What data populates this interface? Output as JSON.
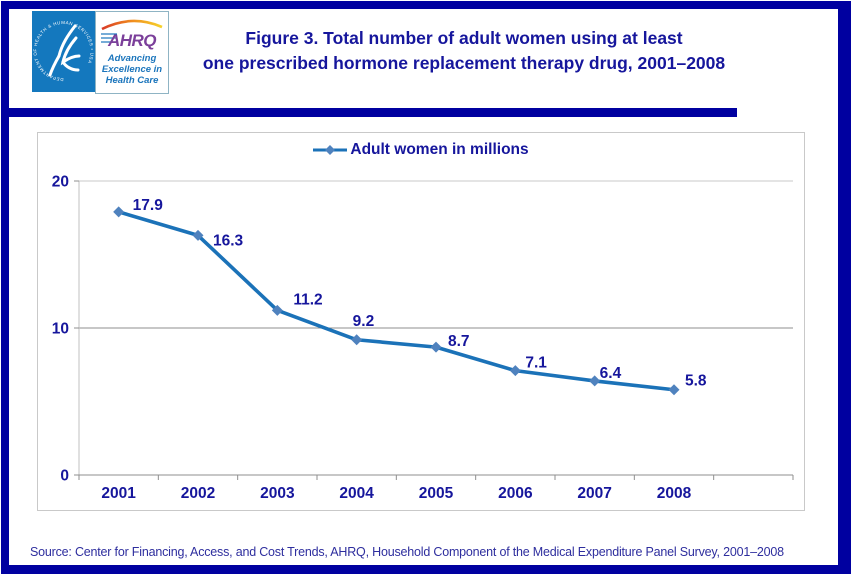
{
  "page": {
    "background": "#FFFFFF",
    "border_color": "#0000A0",
    "title_line1": "Figure 3. Total number of adult women using at least",
    "title_line2": "one prescribed hormone replacement therapy drug, 2001–2008",
    "title_color": "#16169C"
  },
  "header": {
    "hhs_seal_text": "DEPARTMENT OF HEALTH & HUMAN SERVICES • USA",
    "ahrq_acronym": "AHRQ",
    "ahrq_tagline_line1": "Advancing",
    "ahrq_tagline_line2": "Excellence in",
    "ahrq_tagline_line3": "Health Care"
  },
  "chart_data": {
    "type": "line",
    "legend": [
      "Adult women in millions"
    ],
    "legend_position": "top-center",
    "categories": [
      "2001",
      "2002",
      "2003",
      "2004",
      "2005",
      "2006",
      "2007",
      "2008"
    ],
    "series": [
      {
        "name": "Adult women in millions",
        "values": [
          17.9,
          16.3,
          11.2,
          9.2,
          8.7,
          7.1,
          6.4,
          5.8
        ]
      }
    ],
    "ylim": [
      0,
      20
    ],
    "yticks": [
      0,
      10,
      20
    ],
    "grid": "horizontal",
    "line_color": "#1B72B8",
    "marker_color": "#4F82BE",
    "text_color": "#16169C"
  },
  "footer": {
    "source": "Source: Center for Financing, Access, and Cost Trends, AHRQ,  Household Component of the Medical Expenditure Panel Survey,  2001–2008"
  }
}
